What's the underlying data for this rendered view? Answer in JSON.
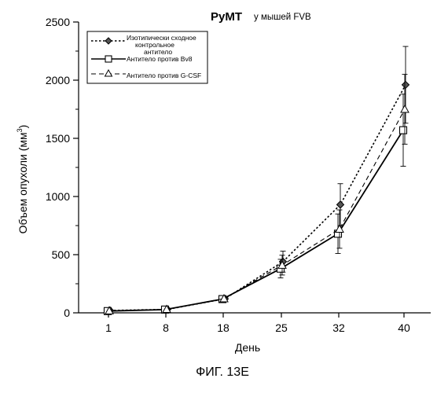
{
  "chart_data": {
    "type": "line",
    "title_bold": "PyMT",
    "title_rest": "у мышей FVB",
    "xlabel": "День",
    "ylabel": "Объем опухоли (мм",
    "ylabel_sup": "3",
    "ylabel_close": ")",
    "categories": [
      "1",
      "8",
      "18",
      "25",
      "32",
      "40"
    ],
    "ylim": [
      0,
      2500
    ],
    "yticks": [
      0,
      500,
      1000,
      1500,
      2000,
      2500
    ],
    "ytick_labels": [
      "0",
      "500",
      "1000",
      "1500",
      "2000",
      "2500"
    ],
    "series": [
      {
        "name_lines": [
          "Изотипически сходное",
          "контрольное",
          "антитело"
        ],
        "marker": "diamond",
        "dash": "dot",
        "values": [
          20,
          30,
          120,
          440,
          930,
          1960
        ],
        "errors": [
          5,
          5,
          10,
          90,
          180,
          330
        ]
      },
      {
        "name_lines": [
          "Антитело против Bv8"
        ],
        "marker": "square",
        "dash": "solid",
        "values": [
          15,
          28,
          118,
          380,
          680,
          1570
        ],
        "errors": [
          5,
          5,
          10,
          80,
          170,
          310
        ]
      },
      {
        "name_lines": [
          "Антитело против G-CSF"
        ],
        "marker": "triangle",
        "dash": "dash",
        "values": [
          18,
          30,
          122,
          410,
          720,
          1750
        ],
        "errors": [
          5,
          5,
          10,
          85,
          165,
          300
        ]
      }
    ],
    "legend_position": "top-left",
    "grid": false
  },
  "figure_caption": "ФИГ. 13E"
}
